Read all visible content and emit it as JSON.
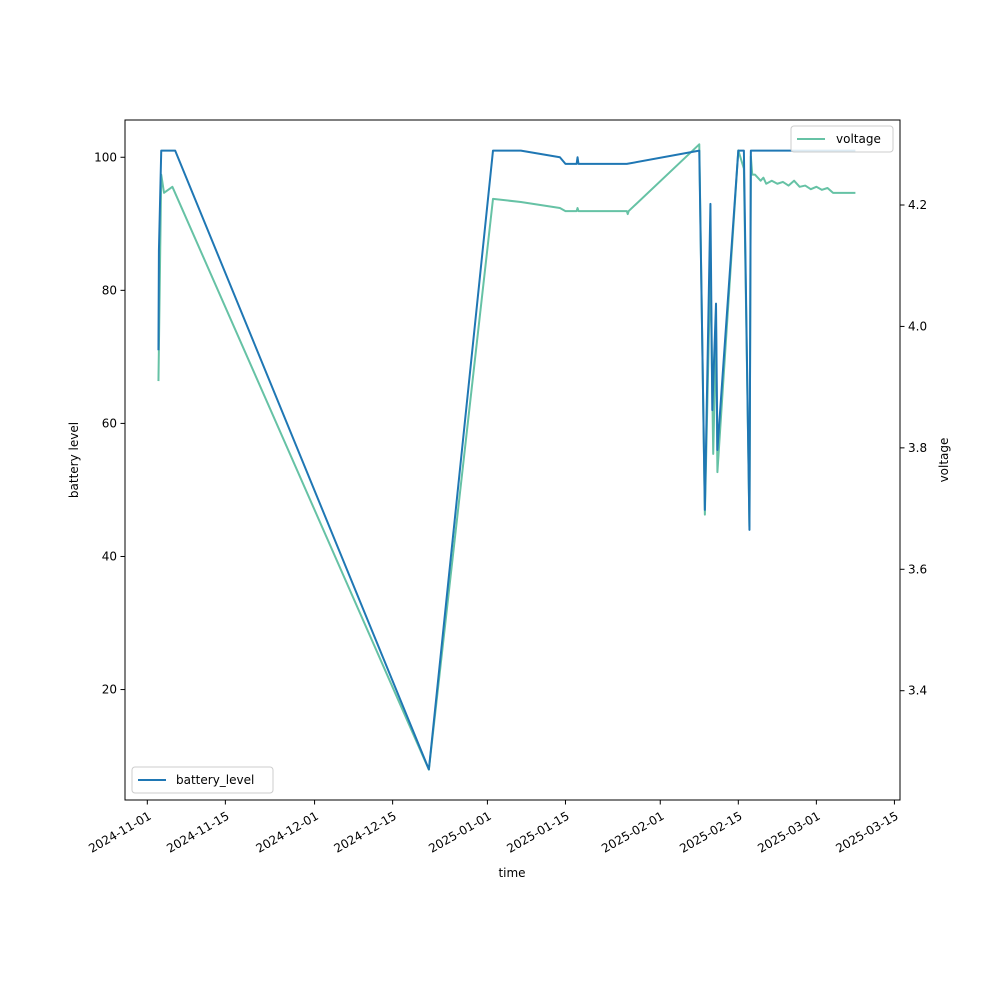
{
  "chart_data": {
    "type": "line",
    "xlabel": "time",
    "y1label": "battery level",
    "y2label": "voltage",
    "x_ticks": [
      "2024-11-01",
      "2024-11-15",
      "2024-12-01",
      "2024-12-15",
      "2025-01-01",
      "2025-01-15",
      "2025-02-01",
      "2025-02-15",
      "2025-03-01",
      "2025-03-15"
    ],
    "y1_ticks": [
      20,
      40,
      60,
      80,
      100
    ],
    "y2_ticks": [
      3.4,
      3.6,
      3.8,
      4.0,
      4.2
    ],
    "xlim": [
      "2024-10-28",
      "2025-03-16"
    ],
    "y1lim": [
      3.4,
      105.6
    ],
    "y2lim": [
      3.22,
      4.34
    ],
    "grid": false,
    "legend": {
      "battery_level": "bottom-left",
      "voltage": "top-right"
    },
    "colors": {
      "battery_level": "#1f77b4",
      "voltage": "#66c2a5"
    },
    "series": [
      {
        "name": "battery_level",
        "axis": "left",
        "points": [
          [
            "2024-11-03T00:00",
            71
          ],
          [
            "2024-11-03T02:00",
            86
          ],
          [
            "2024-11-03T12:00",
            101
          ],
          [
            "2024-11-06T00:00",
            101
          ],
          [
            "2024-12-21T12:00",
            8
          ],
          [
            "2025-01-02T00:00",
            101
          ],
          [
            "2025-01-07T00:00",
            101
          ],
          [
            "2025-01-14T00:00",
            100
          ],
          [
            "2025-01-15T00:00",
            99
          ],
          [
            "2025-01-17T00:00",
            99
          ],
          [
            "2025-01-17T04:00",
            100
          ],
          [
            "2025-01-17T08:00",
            99
          ],
          [
            "2025-01-26T00:00",
            99
          ],
          [
            "2025-02-08T00:00",
            101
          ],
          [
            "2025-02-09T00:00",
            47
          ],
          [
            "2025-02-10T00:00",
            93
          ],
          [
            "2025-02-10T08:00",
            62
          ],
          [
            "2025-02-11T00:00",
            78
          ],
          [
            "2025-02-11T06:00",
            56
          ],
          [
            "2025-02-15T00:00",
            101
          ],
          [
            "2025-02-16T00:00",
            101
          ],
          [
            "2025-02-17T00:00",
            44
          ],
          [
            "2025-02-17T06:00",
            101
          ],
          [
            "2025-03-08T00:00",
            101
          ]
        ]
      },
      {
        "name": "voltage",
        "axis": "right",
        "points": [
          [
            "2024-11-03T00:00",
            3.91
          ],
          [
            "2024-11-03T12:00",
            4.25
          ],
          [
            "2024-11-04T00:00",
            4.22
          ],
          [
            "2024-11-05T12:00",
            4.23
          ],
          [
            "2024-12-21T12:00",
            3.27
          ],
          [
            "2025-01-02T00:00",
            4.21
          ],
          [
            "2025-01-07T00:00",
            4.205
          ],
          [
            "2025-01-14T00:00",
            4.195
          ],
          [
            "2025-01-15T00:00",
            4.19
          ],
          [
            "2025-01-17T00:00",
            4.19
          ],
          [
            "2025-01-17T04:00",
            4.195
          ],
          [
            "2025-01-17T08:00",
            4.19
          ],
          [
            "2025-01-26T00:00",
            4.19
          ],
          [
            "2025-01-26T04:00",
            4.185
          ],
          [
            "2025-01-26T08:00",
            4.19
          ],
          [
            "2025-02-08T00:00",
            4.3
          ],
          [
            "2025-02-09T00:00",
            3.69
          ],
          [
            "2025-02-10T00:00",
            4.1
          ],
          [
            "2025-02-10T12:00",
            3.79
          ],
          [
            "2025-02-11T00:00",
            4.0
          ],
          [
            "2025-02-11T06:00",
            3.76
          ],
          [
            "2025-02-15T00:00",
            4.29
          ],
          [
            "2025-02-16T00:00",
            4.26
          ],
          [
            "2025-02-17T00:00",
            3.67
          ],
          [
            "2025-02-17T06:00",
            4.28
          ],
          [
            "2025-02-17T12:00",
            4.25
          ],
          [
            "2025-02-18T00:00",
            4.25
          ],
          [
            "2025-02-19T00:00",
            4.24
          ],
          [
            "2025-02-19T12:00",
            4.245
          ],
          [
            "2025-02-20T00:00",
            4.235
          ],
          [
            "2025-02-21T00:00",
            4.24
          ],
          [
            "2025-02-22T00:00",
            4.235
          ],
          [
            "2025-02-23T00:00",
            4.238
          ],
          [
            "2025-02-24T00:00",
            4.232
          ],
          [
            "2025-02-25T00:00",
            4.24
          ],
          [
            "2025-02-26T00:00",
            4.23
          ],
          [
            "2025-02-27T00:00",
            4.232
          ],
          [
            "2025-02-28T00:00",
            4.226
          ],
          [
            "2025-03-01T00:00",
            4.23
          ],
          [
            "2025-03-02T00:00",
            4.225
          ],
          [
            "2025-03-03T00:00",
            4.228
          ],
          [
            "2025-03-04T00:00",
            4.22
          ],
          [
            "2025-03-08T00:00",
            4.22
          ]
        ]
      }
    ]
  }
}
